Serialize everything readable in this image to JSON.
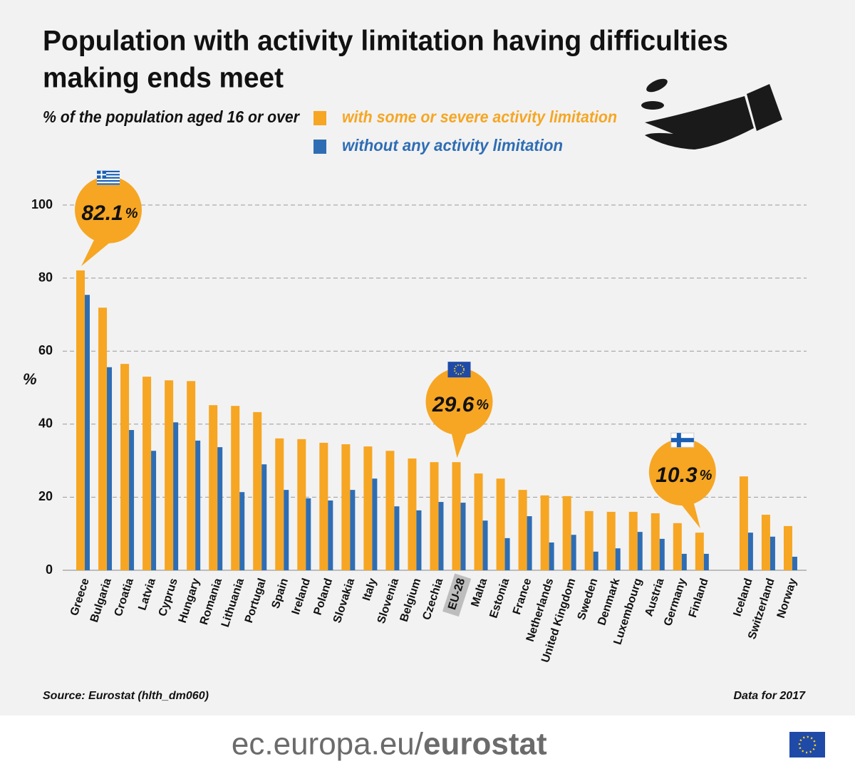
{
  "chart_data": {
    "type": "bar",
    "title": [
      "Population with activity limitation having difficulties",
      "making ends meet"
    ],
    "subtitle": "% of the population aged 16 or over",
    "y_label": "%",
    "source": "Source: Eurostat (hlth_dm060)",
    "note": "Data for 2017",
    "footer": {
      "domain": "ec.europa.eu/",
      "brand": "eurostat"
    },
    "highlight": "EU-28",
    "categories": [
      "Greece",
      "Bulgaria",
      "Croatia",
      "Latvia",
      "Cyprus",
      "Hungary",
      "Romania",
      "Lithuania",
      "Portugal",
      "Spain",
      "Ireland",
      "Poland",
      "Slovakia",
      "Italy",
      "Slovenia",
      "Belgium",
      "Czechia",
      "EU-28",
      "Malta",
      "Estonia",
      "France",
      "Netherlands",
      "United Kingdom",
      "Sweden",
      "Denmark",
      "Luxembourg",
      "Austria",
      "Germany",
      "Finland",
      null,
      "Iceland",
      "Switzerland",
      "Norway"
    ],
    "series": [
      {
        "name": "with some or severe activity limitation",
        "color": "#f6a623",
        "values": [
          82.1,
          71.9,
          56.5,
          53.0,
          52.0,
          51.8,
          45.2,
          45.0,
          43.3,
          36.1,
          35.9,
          34.9,
          34.5,
          33.9,
          32.7,
          30.6,
          29.6,
          29.6,
          26.5,
          25.1,
          22.0,
          20.5,
          20.3,
          16.2,
          16.0,
          16.0,
          15.6,
          12.9,
          10.3,
          null,
          25.7,
          15.2,
          12.1
        ]
      },
      {
        "name": "without any activity limitation",
        "color": "#2e6db4",
        "values": [
          75.4,
          55.6,
          38.4,
          32.7,
          40.5,
          35.5,
          33.7,
          21.4,
          29.0,
          22.0,
          19.7,
          19.1,
          22.0,
          25.1,
          17.5,
          16.4,
          18.7,
          18.5,
          13.6,
          8.8,
          14.8,
          7.6,
          9.7,
          5.1,
          6.0,
          10.5,
          8.6,
          4.5,
          4.5,
          null,
          10.3,
          9.2,
          3.7
        ]
      }
    ],
    "callouts": [
      {
        "category": "Greece",
        "label": "82.1",
        "suffix": "%"
      },
      {
        "category": "EU-28",
        "label": "29.6",
        "suffix": "%"
      },
      {
        "category": "Finland",
        "label": "10.3",
        "suffix": "%"
      }
    ],
    "ylim": [
      0,
      100
    ],
    "yticks": [
      0,
      20,
      40,
      60,
      80,
      100
    ],
    "grid": true
  }
}
